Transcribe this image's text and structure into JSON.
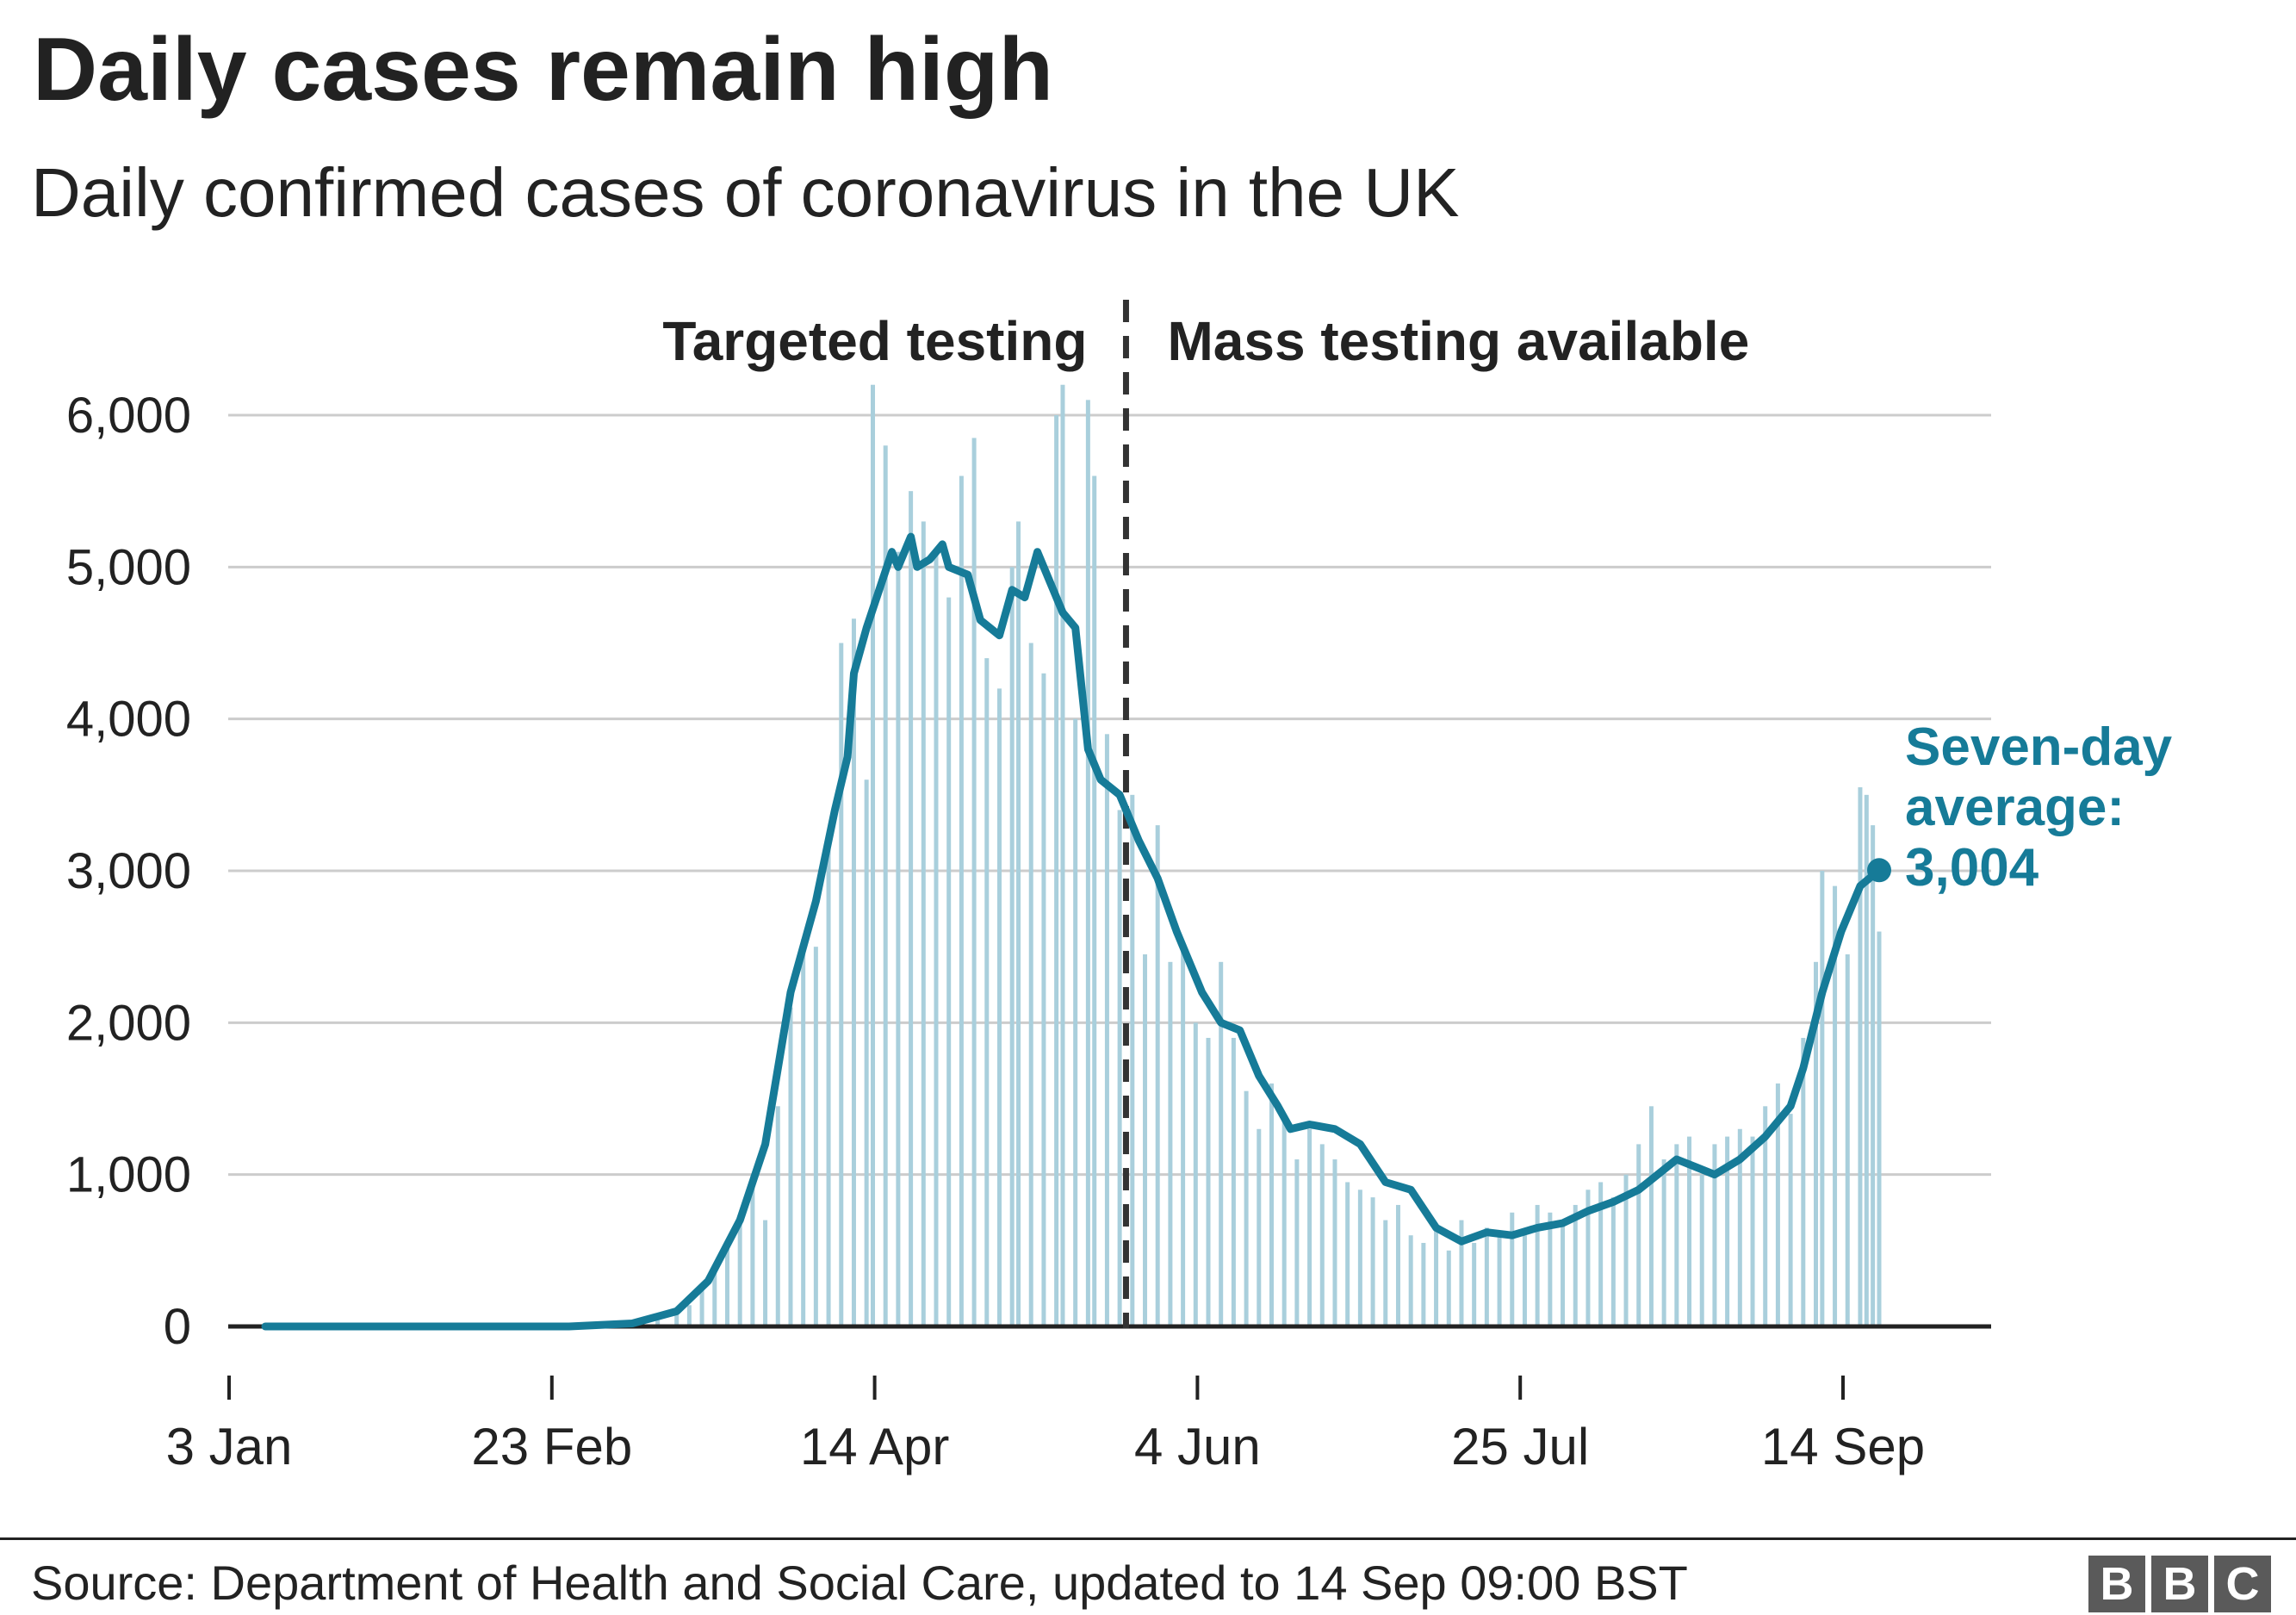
{
  "title": "Daily cases remain high",
  "subtitle": "Daily confirmed cases of coronavirus in the UK",
  "source": "Source: Department of Health and Social Care, updated to 14 Sep 09:00 BST",
  "logo": {
    "letters": [
      "B",
      "B",
      "C"
    ]
  },
  "colors": {
    "bars": "#a9cfdc",
    "average_line": "#167b98",
    "grid": "#cccccc",
    "text": "#222222",
    "divider": "#333333"
  },
  "chart_data": {
    "type": "bar",
    "title": "Daily cases remain high",
    "subtitle": "Daily confirmed cases of coronavirus in the UK",
    "ylim": [
      0,
      6000
    ],
    "y_ticks": [
      0,
      1000,
      2000,
      3000,
      4000,
      5000,
      6000
    ],
    "y_tick_labels": [
      "0",
      "1,000",
      "2,000",
      "3,000",
      "4,000",
      "5,000",
      "6,000"
    ],
    "x_tick_labels": [
      "3 Jan",
      "23 Feb",
      "14 Apr",
      "4 Jun",
      "25 Jul",
      "14 Sep"
    ],
    "x_start": "2020-01-03",
    "x_end": "2020-09-14",
    "divider_date": "2020-05-18",
    "region_labels": [
      "Targeted testing",
      "Mass testing available"
    ],
    "grid": true,
    "series": [
      {
        "name": "Daily confirmed cases",
        "type": "bar",
        "points": [
          [
            "2020-03-01",
            20
          ],
          [
            "2020-03-05",
            50
          ],
          [
            "2020-03-08",
            90
          ],
          [
            "2020-03-10",
            140
          ],
          [
            "2020-03-12",
            250
          ],
          [
            "2020-03-14",
            400
          ],
          [
            "2020-03-16",
            550
          ],
          [
            "2020-03-18",
            680
          ],
          [
            "2020-03-20",
            1000
          ],
          [
            "2020-03-22",
            700
          ],
          [
            "2020-03-24",
            1450
          ],
          [
            "2020-03-26",
            2100
          ],
          [
            "2020-03-28",
            2550
          ],
          [
            "2020-03-30",
            2500
          ],
          [
            "2020-04-01",
            3250
          ],
          [
            "2020-04-03",
            4500
          ],
          [
            "2020-04-05",
            4660
          ],
          [
            "2020-04-07",
            3600
          ],
          [
            "2020-04-08",
            6200
          ],
          [
            "2020-04-10",
            5800
          ],
          [
            "2020-04-12",
            5100
          ],
          [
            "2020-04-14",
            5500
          ],
          [
            "2020-04-16",
            5300
          ],
          [
            "2020-04-18",
            5100
          ],
          [
            "2020-04-20",
            4800
          ],
          [
            "2020-04-22",
            5600
          ],
          [
            "2020-04-24",
            5850
          ],
          [
            "2020-04-26",
            4400
          ],
          [
            "2020-04-28",
            4200
          ],
          [
            "2020-04-30",
            5000
          ],
          [
            "2020-05-01",
            5300
          ],
          [
            "2020-05-03",
            4500
          ],
          [
            "2020-05-05",
            4300
          ],
          [
            "2020-05-07",
            6000
          ],
          [
            "2020-05-08",
            6200
          ],
          [
            "2020-05-10",
            4000
          ],
          [
            "2020-05-12",
            6100
          ],
          [
            "2020-05-13",
            5600
          ],
          [
            "2020-05-15",
            3900
          ],
          [
            "2020-05-17",
            3400
          ],
          [
            "2020-05-19",
            3500
          ],
          [
            "2020-05-21",
            2450
          ],
          [
            "2020-05-23",
            3300
          ],
          [
            "2020-05-25",
            2400
          ],
          [
            "2020-05-27",
            2500
          ],
          [
            "2020-05-29",
            2000
          ],
          [
            "2020-05-31",
            1900
          ],
          [
            "2020-06-02",
            2400
          ],
          [
            "2020-06-04",
            1900
          ],
          [
            "2020-06-06",
            1550
          ],
          [
            "2020-06-08",
            1300
          ],
          [
            "2020-06-10",
            1600
          ],
          [
            "2020-06-12",
            1400
          ],
          [
            "2020-06-14",
            1100
          ],
          [
            "2020-06-16",
            1300
          ],
          [
            "2020-06-18",
            1200
          ],
          [
            "2020-06-20",
            1100
          ],
          [
            "2020-06-22",
            950
          ],
          [
            "2020-06-24",
            900
          ],
          [
            "2020-06-26",
            850
          ],
          [
            "2020-06-28",
            700
          ],
          [
            "2020-06-30",
            800
          ],
          [
            "2020-07-02",
            600
          ],
          [
            "2020-07-04",
            550
          ],
          [
            "2020-07-06",
            650
          ],
          [
            "2020-07-08",
            500
          ],
          [
            "2020-07-10",
            700
          ],
          [
            "2020-07-12",
            550
          ],
          [
            "2020-07-14",
            650
          ],
          [
            "2020-07-16",
            600
          ],
          [
            "2020-07-18",
            750
          ],
          [
            "2020-07-20",
            600
          ],
          [
            "2020-07-22",
            800
          ],
          [
            "2020-07-24",
            750
          ],
          [
            "2020-07-26",
            700
          ],
          [
            "2020-07-28",
            800
          ],
          [
            "2020-07-30",
            900
          ],
          [
            "2020-08-01",
            950
          ],
          [
            "2020-08-03",
            850
          ],
          [
            "2020-08-05",
            1000
          ],
          [
            "2020-08-07",
            1200
          ],
          [
            "2020-08-09",
            1450
          ],
          [
            "2020-08-11",
            1100
          ],
          [
            "2020-08-13",
            1200
          ],
          [
            "2020-08-15",
            1250
          ],
          [
            "2020-08-17",
            1000
          ],
          [
            "2020-08-19",
            1200
          ],
          [
            "2020-08-21",
            1250
          ],
          [
            "2020-08-23",
            1300
          ],
          [
            "2020-08-25",
            1250
          ],
          [
            "2020-08-27",
            1450
          ],
          [
            "2020-08-29",
            1600
          ],
          [
            "2020-08-31",
            1400
          ],
          [
            "2020-09-02",
            1900
          ],
          [
            "2020-09-04",
            2400
          ],
          [
            "2020-09-05",
            3000
          ],
          [
            "2020-09-07",
            2900
          ],
          [
            "2020-09-09",
            2450
          ],
          [
            "2020-09-11",
            3550
          ],
          [
            "2020-09-12",
            3500
          ],
          [
            "2020-09-13",
            3300
          ],
          [
            "2020-09-14",
            2600
          ]
        ]
      },
      {
        "name": "Seven-day average",
        "type": "line",
        "points": [
          [
            "2020-01-03",
            0
          ],
          [
            "2020-02-20",
            0
          ],
          [
            "2020-03-01",
            20
          ],
          [
            "2020-03-08",
            100
          ],
          [
            "2020-03-13",
            300
          ],
          [
            "2020-03-18",
            700
          ],
          [
            "2020-03-22",
            1200
          ],
          [
            "2020-03-26",
            2200
          ],
          [
            "2020-03-30",
            2800
          ],
          [
            "2020-04-02",
            3400
          ],
          [
            "2020-04-04",
            3750
          ],
          [
            "2020-04-05",
            4300
          ],
          [
            "2020-04-07",
            4600
          ],
          [
            "2020-04-09",
            4850
          ],
          [
            "2020-04-11",
            5100
          ],
          [
            "2020-04-12",
            5000
          ],
          [
            "2020-04-14",
            5200
          ],
          [
            "2020-04-15",
            5000
          ],
          [
            "2020-04-17",
            5050
          ],
          [
            "2020-04-19",
            5150
          ],
          [
            "2020-04-20",
            5000
          ],
          [
            "2020-04-23",
            4950
          ],
          [
            "2020-04-25",
            4650
          ],
          [
            "2020-04-28",
            4550
          ],
          [
            "2020-04-30",
            4850
          ],
          [
            "2020-05-02",
            4800
          ],
          [
            "2020-05-04",
            5100
          ],
          [
            "2020-05-06",
            4900
          ],
          [
            "2020-05-08",
            4700
          ],
          [
            "2020-05-10",
            4600
          ],
          [
            "2020-05-12",
            3800
          ],
          [
            "2020-05-14",
            3600
          ],
          [
            "2020-05-17",
            3500
          ],
          [
            "2020-05-20",
            3200
          ],
          [
            "2020-05-23",
            2950
          ],
          [
            "2020-05-26",
            2600
          ],
          [
            "2020-05-30",
            2200
          ],
          [
            "2020-06-02",
            2000
          ],
          [
            "2020-06-05",
            1950
          ],
          [
            "2020-06-08",
            1650
          ],
          [
            "2020-06-11",
            1450
          ],
          [
            "2020-06-13",
            1300
          ],
          [
            "2020-06-16",
            1330
          ],
          [
            "2020-06-20",
            1300
          ],
          [
            "2020-06-24",
            1200
          ],
          [
            "2020-06-28",
            950
          ],
          [
            "2020-07-02",
            900
          ],
          [
            "2020-07-06",
            650
          ],
          [
            "2020-07-10",
            560
          ],
          [
            "2020-07-14",
            620
          ],
          [
            "2020-07-18",
            600
          ],
          [
            "2020-07-22",
            650
          ],
          [
            "2020-07-26",
            680
          ],
          [
            "2020-07-30",
            760
          ],
          [
            "2020-08-03",
            820
          ],
          [
            "2020-08-07",
            900
          ],
          [
            "2020-08-10",
            1000
          ],
          [
            "2020-08-13",
            1100
          ],
          [
            "2020-08-16",
            1050
          ],
          [
            "2020-08-19",
            1000
          ],
          [
            "2020-08-23",
            1100
          ],
          [
            "2020-08-27",
            1250
          ],
          [
            "2020-08-31",
            1450
          ],
          [
            "2020-09-02",
            1700
          ],
          [
            "2020-09-05",
            2200
          ],
          [
            "2020-09-08",
            2600
          ],
          [
            "2020-09-11",
            2900
          ],
          [
            "2020-09-14",
            3004
          ]
        ]
      }
    ],
    "annotation": {
      "line1": "Seven-day",
      "line2": "average:",
      "line3": "3,004",
      "date": "2020-09-14",
      "value": 3004
    }
  }
}
